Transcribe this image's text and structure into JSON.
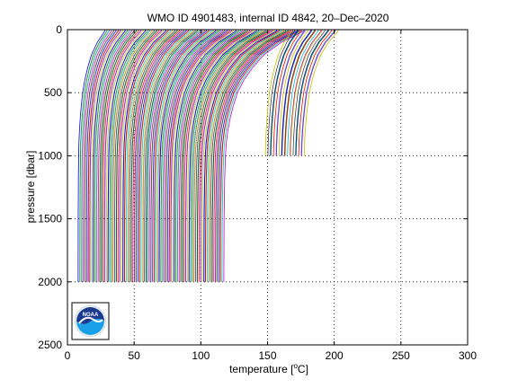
{
  "chart_data": {
    "type": "line",
    "title": "WMO ID 4901483, internal ID 4842, 20–Dec–2020",
    "xlabel": {
      "prefix": "temperature [",
      "superscript": "o",
      "suffix": "C]"
    },
    "ylabel": "pressure [dbar]",
    "xlim": [
      0,
      300
    ],
    "ylim": [
      0,
      2500
    ],
    "y_reversed": true,
    "grid": true,
    "grid_style": "dotted",
    "x_ticks": [
      0,
      50,
      100,
      150,
      200,
      250,
      300
    ],
    "y_ticks": [
      0,
      500,
      1000,
      1500,
      2000,
      2500
    ],
    "profile_offset_note": "each profile is offset horizontally",
    "profile_count": 160,
    "profiles_group_a": {
      "count": 138,
      "offset_start": 8,
      "offset_end": 116,
      "max_pressure": 2000,
      "surface_warming": [
        20,
        60
      ]
    },
    "profiles_group_b": {
      "count": 22,
      "offset_start": 148,
      "offset_end": 176,
      "max_pressure": 1000,
      "surface_warming": [
        20,
        26
      ]
    },
    "series_colors": [
      "#0000ff",
      "#008000",
      "#ff0000",
      "#00bfbf",
      "#bf00bf",
      "#bfbf00",
      "#404040"
    ],
    "logo": {
      "text": "NOAA",
      "colors": {
        "top": "#1a3a8f",
        "bottom": "#1aa0e8",
        "ring": "#ffffff"
      }
    }
  }
}
